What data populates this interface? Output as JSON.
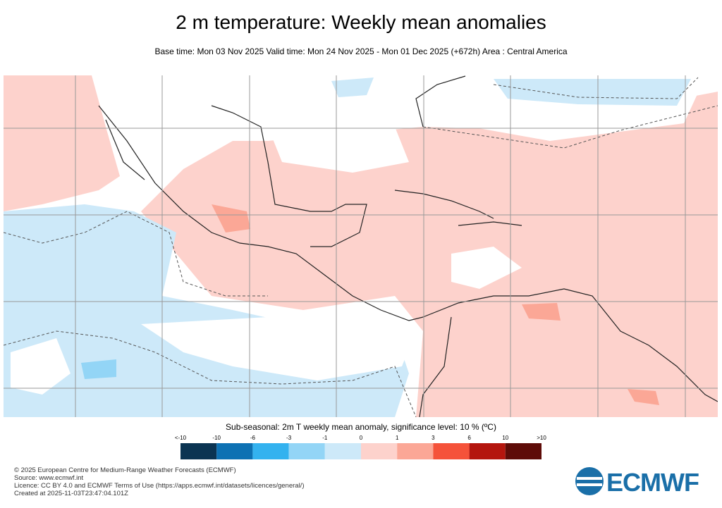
{
  "header": {
    "title": "2 m temperature: Weekly mean anomalies",
    "subtitle": "Base time: Mon 03 Nov 2025 Valid time: Mon 24 Nov 2025 - Mon 01 Dec 2025 (+672h) Area : Central America"
  },
  "legend": {
    "title": "Sub-seasonal: 2m T weekly mean anomaly, significance level: 10 % (ºC)",
    "labels": [
      "<-10",
      "-10",
      "-6",
      "-3",
      "-1",
      "0",
      "1",
      "3",
      "6",
      "10",
      ">10"
    ],
    "colors": [
      "#0b3452",
      "#0d71b3",
      "#33b2ef",
      "#93d5f6",
      "#cde9f9",
      "#fdd2cc",
      "#fba796",
      "#f5523a",
      "#b4160e",
      "#5e0c08"
    ]
  },
  "footer": {
    "lines": [
      "© 2025 European Centre for Medium-Range Weather Forecasts (ECMWF)",
      "Source: www.ecmwf.int",
      "Licence: CC BY 4.0 and ECMWF Terms of Use (https://apps.ecmwf.int/datasets/licences/general/)",
      "Created at 2025-11-03T23:47:04.101Z"
    ],
    "logo": "ECMWF"
  }
}
